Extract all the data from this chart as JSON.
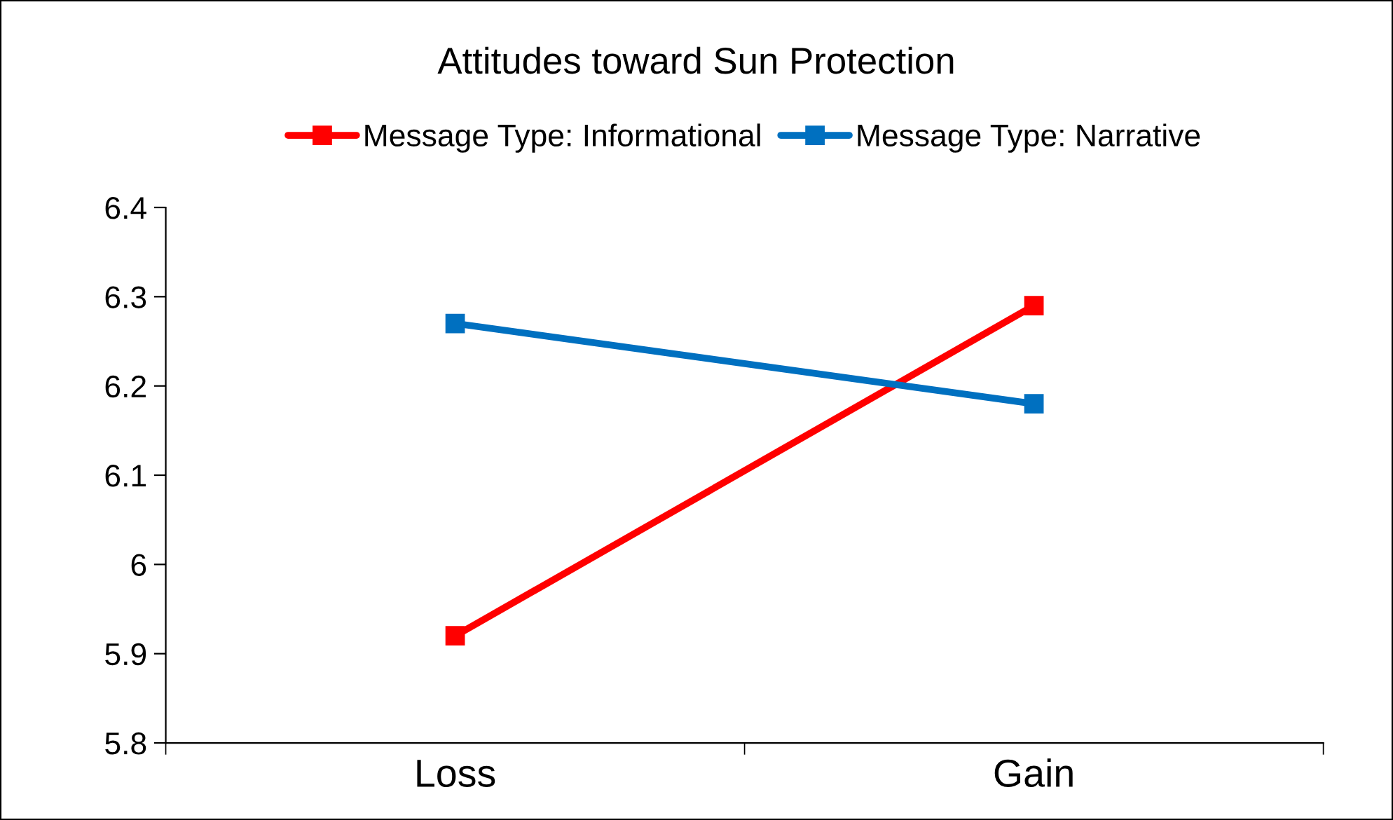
{
  "chart_data": {
    "type": "line",
    "title": "Attitudes toward Sun Protection",
    "categories": [
      "Loss",
      "Gain"
    ],
    "series": [
      {
        "name": "Message Type: Informational",
        "color": "#ff0000",
        "values": [
          5.92,
          6.29
        ]
      },
      {
        "name": "Message Type: Narrative",
        "color": "#0070c0",
        "values": [
          6.27,
          6.18
        ]
      }
    ],
    "ylim": [
      5.8,
      6.4
    ],
    "yticks": [
      5.8,
      5.9,
      6,
      6.1,
      6.2,
      6.3,
      6.4
    ],
    "grid": false,
    "legend": "top",
    "marker": "square",
    "line_style": "solid"
  }
}
